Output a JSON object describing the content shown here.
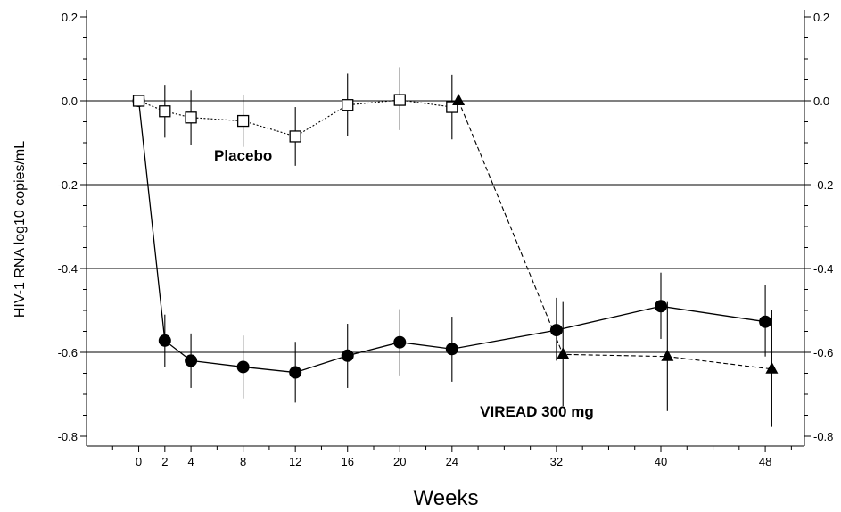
{
  "chart_data": {
    "type": "line",
    "xlabel": "Weeks",
    "ylabel": "HIV-1 RNA log10 copies/mL",
    "xlim": [
      -4,
      51
    ],
    "ylim": [
      -0.82,
      0.22
    ],
    "xticks": [
      0,
      2,
      4,
      8,
      12,
      16,
      20,
      24,
      32,
      40,
      48
    ],
    "yticks": [
      0.2,
      0.0,
      -0.2,
      -0.4,
      -0.6,
      -0.8
    ],
    "ytick_labels": [
      "0.2",
      "0.0",
      "-0.2",
      "-0.4",
      "-0.6",
      "-0.8"
    ],
    "right_axis": true,
    "grid": "horizontal",
    "annotations": [
      {
        "text": "Placebo",
        "x": 8,
        "y": -0.13
      },
      {
        "text": "VIREAD 300 mg",
        "x": 30.5,
        "y": -0.74
      }
    ],
    "series": [
      {
        "marker": "circle-filled",
        "line": "solid",
        "points": [
          {
            "x": 0,
            "y": 0.0,
            "lo": 0.0,
            "hi": 0.0
          },
          {
            "x": 2,
            "y": -0.572,
            "lo": -0.635,
            "hi": -0.51
          },
          {
            "x": 4,
            "y": -0.62,
            "lo": -0.685,
            "hi": -0.555
          },
          {
            "x": 8,
            "y": -0.635,
            "lo": -0.71,
            "hi": -0.56
          },
          {
            "x": 12,
            "y": -0.648,
            "lo": -0.72,
            "hi": -0.575
          },
          {
            "x": 16,
            "y": -0.608,
            "lo": -0.685,
            "hi": -0.532
          },
          {
            "x": 20,
            "y": -0.576,
            "lo": -0.655,
            "hi": -0.497
          },
          {
            "x": 24,
            "y": -0.592,
            "lo": -0.67,
            "hi": -0.515
          },
          {
            "x": 32,
            "y": -0.547,
            "lo": -0.62,
            "hi": -0.47
          },
          {
            "x": 40,
            "y": -0.49,
            "lo": -0.568,
            "hi": -0.41
          },
          {
            "x": 48,
            "y": -0.527,
            "lo": -0.61,
            "hi": -0.44
          }
        ]
      },
      {
        "marker": "square-open",
        "line": "dotted",
        "points": [
          {
            "x": 0,
            "y": 0.0,
            "lo": 0.0,
            "hi": 0.0
          },
          {
            "x": 2,
            "y": -0.025,
            "lo": -0.088,
            "hi": 0.038
          },
          {
            "x": 4,
            "y": -0.04,
            "lo": -0.105,
            "hi": 0.025
          },
          {
            "x": 8,
            "y": -0.048,
            "lo": -0.11,
            "hi": 0.015
          },
          {
            "x": 12,
            "y": -0.085,
            "lo": -0.155,
            "hi": -0.015
          },
          {
            "x": 16,
            "y": -0.01,
            "lo": -0.085,
            "hi": 0.065
          },
          {
            "x": 20,
            "y": 0.002,
            "lo": -0.07,
            "hi": 0.08
          },
          {
            "x": 24,
            "y": -0.015,
            "lo": -0.092,
            "hi": 0.062
          }
        ]
      },
      {
        "marker": "triangle-filled",
        "line": "dashed",
        "points": [
          {
            "x": 24.5,
            "y": 0.0,
            "lo": 0.0,
            "hi": 0.0
          },
          {
            "x": 32.5,
            "y": -0.605,
            "lo": -0.728,
            "hi": -0.48
          },
          {
            "x": 40.5,
            "y": -0.61,
            "lo": -0.74,
            "hi": -0.48
          },
          {
            "x": 48.5,
            "y": -0.64,
            "lo": -0.778,
            "hi": -0.5
          }
        ]
      }
    ]
  }
}
